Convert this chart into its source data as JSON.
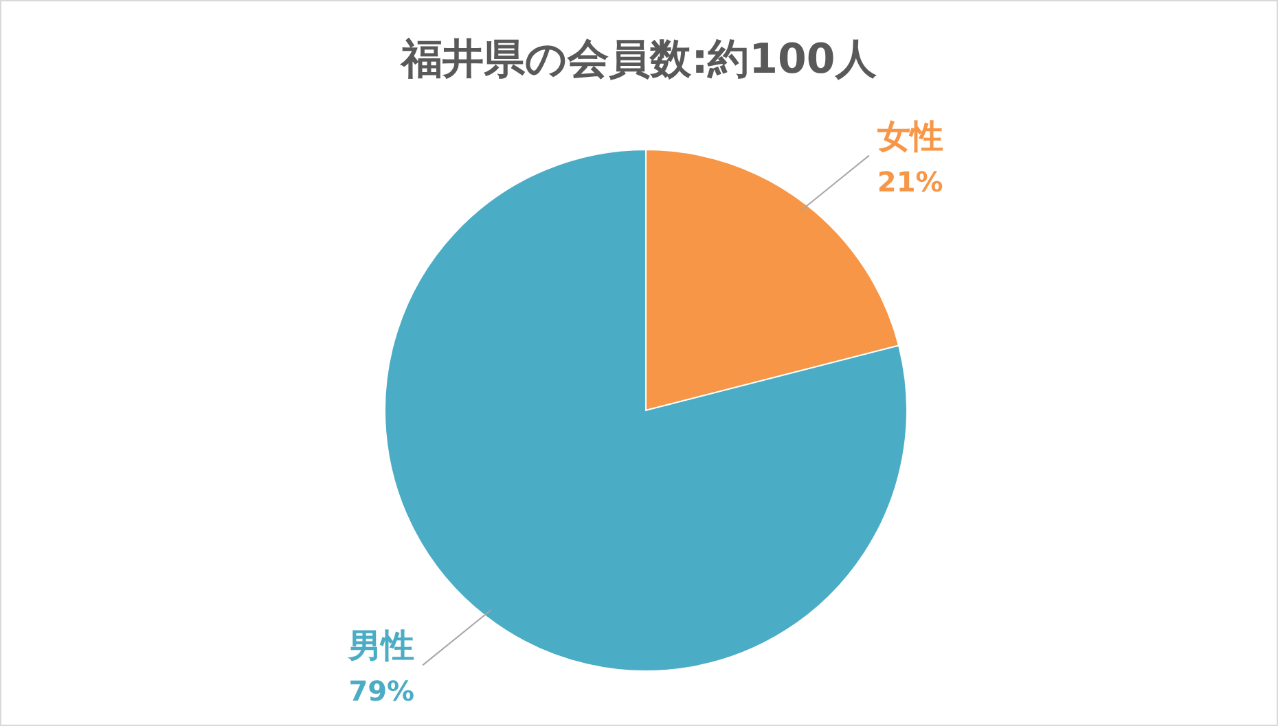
{
  "chart_data": {
    "type": "pie",
    "title": "福井県の会員数:約100人",
    "categories": [
      "女性",
      "男性"
    ],
    "values": [
      21,
      79
    ],
    "colors": [
      "#f79646",
      "#4bacc6"
    ],
    "value_labels": [
      "21%",
      "79%"
    ]
  }
}
